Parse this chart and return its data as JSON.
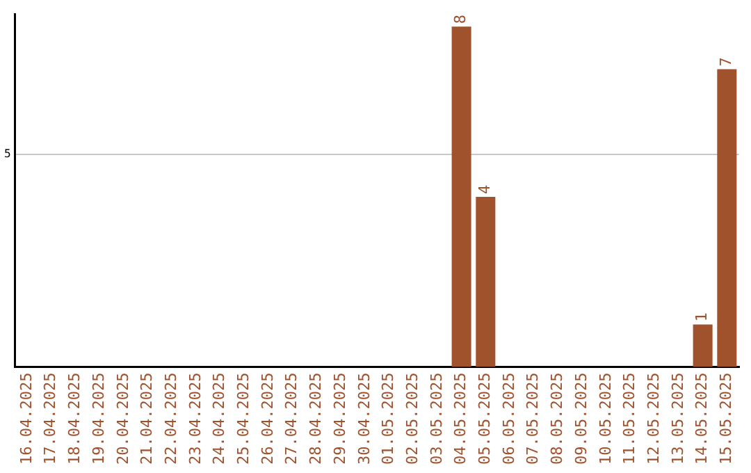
{
  "chart_data": {
    "type": "bar",
    "categories": [
      "16.04.2025",
      "17.04.2025",
      "18.04.2025",
      "19.04.2025",
      "20.04.2025",
      "21.04.2025",
      "22.04.2025",
      "23.04.2025",
      "24.04.2025",
      "25.04.2025",
      "26.04.2025",
      "27.04.2025",
      "28.04.2025",
      "29.04.2025",
      "30.04.2025",
      "01.05.2025",
      "02.05.2025",
      "03.05.2025",
      "04.05.2025",
      "05.05.2025",
      "06.05.2025",
      "07.05.2025",
      "08.05.2025",
      "09.05.2025",
      "10.05.2025",
      "11.05.2025",
      "12.05.2025",
      "13.05.2025",
      "14.05.2025",
      "15.05.2025"
    ],
    "values": [
      null,
      null,
      null,
      null,
      null,
      null,
      null,
      null,
      null,
      null,
      null,
      null,
      null,
      null,
      null,
      null,
      null,
      null,
      8,
      4,
      null,
      null,
      null,
      null,
      null,
      null,
      null,
      null,
      1,
      7
    ],
    "data_labels": true,
    "color": "#a0522d",
    "ylim": [
      0,
      8.3
    ],
    "yticks": [
      5
    ],
    "grid": "y",
    "legend": false
  }
}
